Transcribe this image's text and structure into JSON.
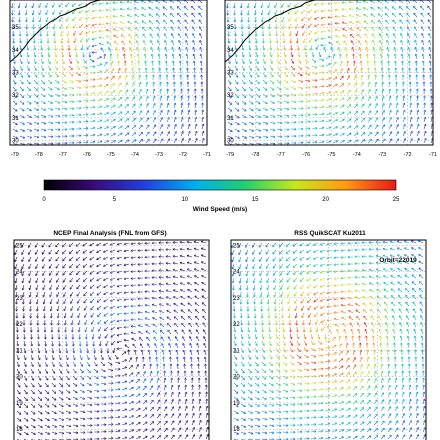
{
  "chart_data": [
    {
      "type": "vector-field",
      "panel": "top-left",
      "title": "",
      "x_ticks": [
        "-79",
        "-78",
        "-77",
        "-76",
        "-75",
        "-74",
        "-73",
        "-72",
        "-71"
      ],
      "y_ticks": [
        "30",
        "31",
        "32",
        "33",
        "34",
        "35"
      ],
      "xlim": [
        -79.2,
        -71
      ],
      "ylim": [
        29.8,
        36.2
      ],
      "vortex": {
        "x": -75.6,
        "y": 33.8,
        "core_wind_ms": 6,
        "max_wind_ms": 24,
        "radius_deg": 1.2
      },
      "grid": true
    },
    {
      "type": "vector-field",
      "panel": "top-right",
      "title": "",
      "x_ticks": [
        "-79",
        "-78",
        "-77",
        "-76",
        "-75",
        "-74",
        "-73",
        "-72",
        "-71"
      ],
      "y_ticks": [
        "30",
        "31",
        "32",
        "33",
        "34",
        "35"
      ],
      "xlim": [
        -79.2,
        -71
      ],
      "ylim": [
        29.8,
        36.2
      ],
      "vortex": {
        "x": -75.3,
        "y": 33.9,
        "core_wind_ms": 10,
        "max_wind_ms": 25,
        "radius_deg": 1.3
      },
      "grid": true
    },
    {
      "type": "vector-field",
      "panel": "bottom-left",
      "title": "NCEP Final Analysis (FNL from GFS)",
      "y_ticks": [
        "18",
        "19",
        "20",
        "21",
        "22",
        "23",
        "24",
        "25"
      ],
      "ylim": [
        17.4,
        25.2
      ],
      "vortex": {
        "x": 0.55,
        "y": 20.9,
        "core_wind_ms": 2,
        "max_wind_ms": 9,
        "radius_deg": 1.0
      },
      "grid": true
    },
    {
      "type": "vector-field",
      "panel": "bottom-right",
      "title": "RSS QuikSCAT Ku2011",
      "annotation": "Orbit=22019",
      "y_ticks": [
        "18",
        "19",
        "20",
        "21",
        "22",
        "23",
        "24",
        "25"
      ],
      "ylim": [
        17.4,
        25.2
      ],
      "vortex": {
        "x": 0.5,
        "y": 21.6,
        "core_wind_ms": 20,
        "max_wind_ms": 24,
        "radius_deg": 1.0
      },
      "grid": true
    }
  ],
  "colorbar": {
    "label": "Wind Speed (m/s)",
    "min": 0,
    "max": 25,
    "ticks": [
      "0",
      "5",
      "10",
      "15",
      "20",
      "25"
    ],
    "colormap": [
      "#000000",
      "#3a0a7a",
      "#2040e0",
      "#00b0f0",
      "#20d070",
      "#c8e81c",
      "#ff9a10",
      "#e81818"
    ]
  },
  "colors": {
    "coastline": "#000000",
    "grid": "#9a9a9a",
    "frame": "#000000"
  }
}
